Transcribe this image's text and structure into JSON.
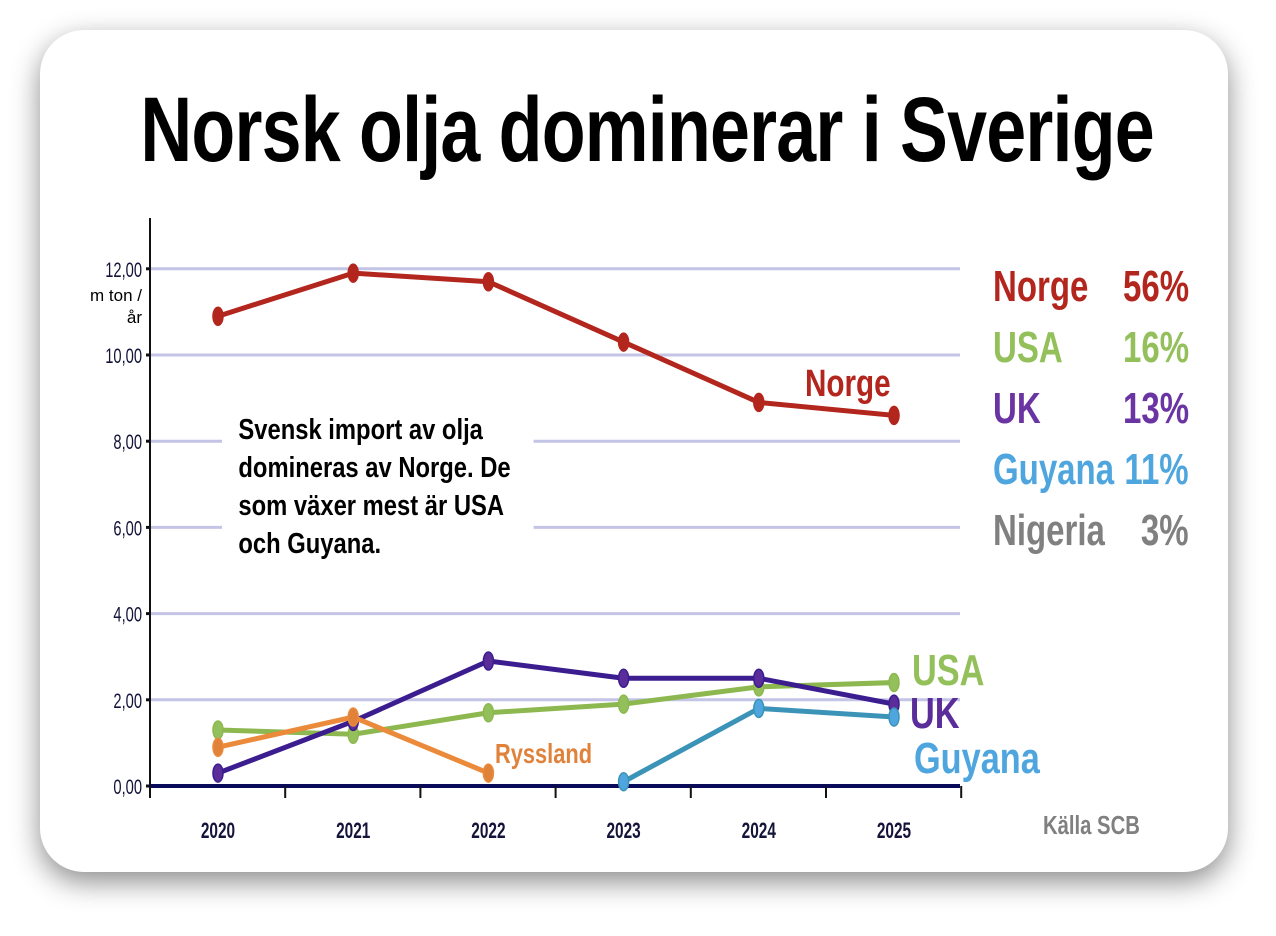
{
  "title": "Norsk olja dominerar i Sverige",
  "note": "Svensk import av olja domineras av Norge. De som växer mest är USA och Guyana.",
  "source": "Källa SCB",
  "legend": [
    {
      "name": "Norge",
      "pct": "56%",
      "color": "#b3261e"
    },
    {
      "name": "USA",
      "pct": "16%",
      "color": "#93c05a"
    },
    {
      "name": "UK",
      "pct": "13%",
      "color": "#6a35a3"
    },
    {
      "name": "Guyana",
      "pct": "11%",
      "color": "#4fa6de"
    },
    {
      "name": "Nigeria",
      "pct": "3%",
      "color": "#808080"
    }
  ],
  "chart_data": {
    "type": "line",
    "title": "Norsk olja dominerar i Sverige",
    "ylabel": "m ton /år",
    "xlabel": "",
    "categories": [
      "2020",
      "2021",
      "2022",
      "2023",
      "2024",
      "2025"
    ],
    "yticks": [
      "0,00",
      "2,00",
      "4,00",
      "6,00",
      "8,00",
      "10,00",
      "12,00"
    ],
    "ylim": [
      0,
      13
    ],
    "grid": true,
    "series": [
      {
        "name": "Norge",
        "color": "#b3261e",
        "labelColor": "#b3261e",
        "values": [
          10.9,
          11.9,
          11.7,
          10.3,
          8.9,
          8.6
        ]
      },
      {
        "name": "USA",
        "color": "#8cb84f",
        "labelColor": "#93c05a",
        "values": [
          1.3,
          1.2,
          1.7,
          1.9,
          2.3,
          2.4
        ]
      },
      {
        "name": "UK",
        "color": "#3b1d8f",
        "labelColor": "#5b2d9a",
        "values": [
          0.3,
          1.5,
          2.9,
          2.5,
          2.5,
          1.9
        ]
      },
      {
        "name": "Ryssland",
        "color": "#ea8a3a",
        "labelColor": "#e0823a",
        "values": [
          0.9,
          1.6,
          0.3,
          null,
          null,
          null
        ]
      },
      {
        "name": "Guyana",
        "color": "#3b94b8",
        "labelColor": "#4fa6de",
        "values": [
          null,
          null,
          null,
          0.1,
          1.8,
          1.6
        ]
      }
    ]
  }
}
